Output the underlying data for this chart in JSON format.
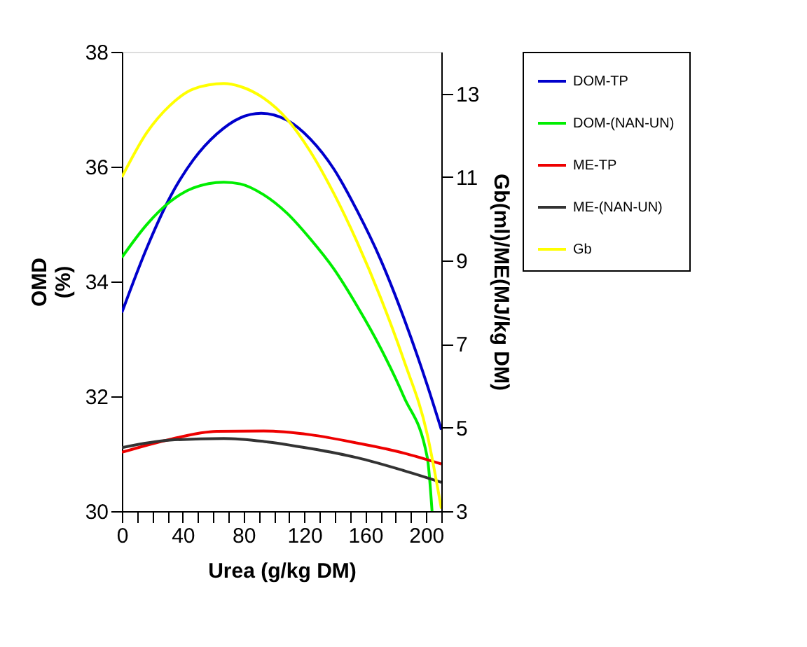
{
  "chart_data": {
    "type": "line",
    "xlabel": "Urea (g/kg DM)",
    "ylabel": "OMD\n(%)",
    "y2label": "Gb(ml)/ME(MJ/kg DM)",
    "xlim": [
      0,
      210
    ],
    "xticks": [
      0,
      {
        "value": 10,
        "label": null
      },
      {
        "value": 20,
        "label": null
      },
      {
        "value": 30,
        "label": null
      },
      40,
      {
        "value": 50,
        "label": null
      },
      {
        "value": 60,
        "label": null
      },
      {
        "value": 70,
        "label": null
      },
      80,
      {
        "value": 90,
        "label": null
      },
      {
        "value": 100,
        "label": null
      },
      {
        "value": 110,
        "label": null
      },
      120,
      {
        "value": 130,
        "label": null
      },
      {
        "value": 140,
        "label": null
      },
      {
        "value": 150,
        "label": null
      },
      160,
      {
        "value": 170,
        "label": null
      },
      {
        "value": 180,
        "label": null
      },
      {
        "value": 190,
        "label": null
      },
      200,
      {
        "value": 210,
        "label": null
      }
    ],
    "ylim": [
      30,
      38
    ],
    "yticks": [
      30,
      32,
      34,
      36,
      38
    ],
    "y2lim": [
      3,
      14
    ],
    "y2ticks": [
      3,
      5,
      7,
      9,
      11,
      13
    ],
    "grid": false,
    "legend": "right",
    "marker": "none",
    "line_style": "solid",
    "series": [
      {
        "name": "DOM-TP",
        "color": "#0000cc",
        "x": [
          0,
          16.3,
          31.7,
          47.0,
          62.4,
          77.8,
          91.6,
          108.5,
          123.9,
          139.3,
          154.7,
          170.1,
          185.4,
          200.8,
          210
        ],
        "values": [
          33.46,
          34.58,
          35.47,
          36.12,
          36.57,
          36.85,
          36.93,
          36.81,
          36.48,
          35.96,
          35.23,
          34.38,
          33.36,
          32.19,
          31.42
        ]
      },
      {
        "name": "DOM-(NAN-UN)",
        "color": "#00ee00",
        "x": [
          0,
          16.3,
          31.7,
          47.0,
          67.0,
          77.8,
          93.2,
          108.5,
          123.9,
          139.3,
          154.7,
          170.1,
          185.4,
          200.8,
          203.9
        ],
        "values": [
          34.42,
          34.99,
          35.39,
          35.63,
          35.73,
          35.7,
          35.51,
          35.19,
          34.74,
          34.22,
          33.57,
          32.84,
          31.99,
          30.93,
          30.0
        ]
      },
      {
        "name": "ME-TP",
        "color": "#ee0000",
        "axis": "y2",
        "x": [
          0,
          31.7,
          62.4,
          93.2,
          123.9,
          154.7,
          185.4,
          210
        ],
        "values": [
          4.41,
          4.72,
          4.91,
          4.92,
          4.83,
          4.63,
          4.39,
          4.13
        ]
      },
      {
        "name": "ME-(NAN-UN)",
        "color": "#333333",
        "axis": "y2",
        "x": [
          0,
          31.7,
          67.0,
          93.2,
          123.9,
          154.7,
          185.4,
          210
        ],
        "values": [
          4.52,
          4.7,
          4.74,
          4.67,
          4.5,
          4.28,
          3.97,
          3.69
        ]
      },
      {
        "name": "Gb",
        "color": "#ffff00",
        "axis": "y2",
        "x": [
          0,
          16.3,
          31.7,
          47.0,
          67.0,
          77.8,
          93.2,
          108.5,
          123.9,
          139.3,
          154.7,
          170.1,
          185.4,
          200.8,
          210
        ],
        "values": [
          11.0,
          12.06,
          12.72,
          13.11,
          13.24,
          13.17,
          12.89,
          12.39,
          11.61,
          10.61,
          9.44,
          8.11,
          6.61,
          4.83,
          3.06
        ]
      }
    ]
  }
}
